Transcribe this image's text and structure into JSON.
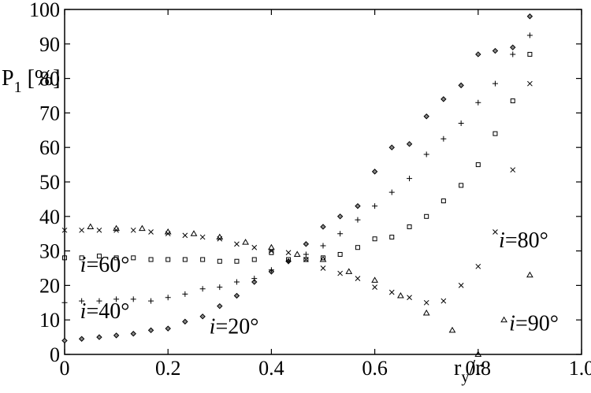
{
  "chart_data": {
    "type": "scatter",
    "xlim": [
      0,
      1.0
    ],
    "ylim": [
      0,
      100
    ],
    "x_ticks": [
      "0",
      "0.2",
      "0.4",
      "0.6",
      "0.8",
      "1.0"
    ],
    "y_ticks": [
      "0",
      "10",
      "20",
      "30",
      "40",
      "50",
      "60",
      "70",
      "80",
      "90",
      "100"
    ],
    "ylabel": {
      "main": "P",
      "sub": "1",
      "unit": " [%]"
    },
    "xlabel": {
      "main": "r",
      "sub": "y",
      "tail": "/r"
    },
    "grid": false,
    "series": [
      {
        "name": "i=20°",
        "marker": "diamond",
        "x": [
          0.0,
          0.033,
          0.067,
          0.1,
          0.133,
          0.167,
          0.2,
          0.233,
          0.267,
          0.3,
          0.333,
          0.367,
          0.4,
          0.433,
          0.467,
          0.5,
          0.533,
          0.567,
          0.6,
          0.633,
          0.667,
          0.7,
          0.733,
          0.767,
          0.8,
          0.833,
          0.867,
          0.9
        ],
        "y": [
          4,
          4.5,
          5,
          5.5,
          6,
          7,
          7.5,
          9.5,
          11,
          14,
          17,
          21,
          24,
          27,
          32,
          37,
          40,
          43,
          53,
          60,
          61,
          69,
          74,
          78,
          87,
          88,
          89,
          98
        ]
      },
      {
        "name": "i=40°",
        "marker": "plus",
        "x": [
          0.0,
          0.033,
          0.067,
          0.1,
          0.133,
          0.167,
          0.2,
          0.233,
          0.267,
          0.3,
          0.333,
          0.367,
          0.4,
          0.433,
          0.467,
          0.5,
          0.533,
          0.567,
          0.6,
          0.633,
          0.667,
          0.7,
          0.733,
          0.767,
          0.8,
          0.833,
          0.867,
          0.9
        ],
        "y": [
          15,
          15.5,
          15.5,
          16,
          16,
          15.5,
          16.5,
          17.5,
          19,
          19.5,
          21,
          22,
          24.5,
          27,
          29,
          31.5,
          35,
          39,
          43,
          47,
          51,
          58,
          62.5,
          67,
          73,
          78.5,
          87,
          92.5
        ]
      },
      {
        "name": "i=60°",
        "marker": "square",
        "x": [
          0.0,
          0.033,
          0.067,
          0.1,
          0.133,
          0.167,
          0.2,
          0.233,
          0.267,
          0.3,
          0.333,
          0.367,
          0.4,
          0.433,
          0.467,
          0.5,
          0.533,
          0.567,
          0.6,
          0.633,
          0.667,
          0.7,
          0.733,
          0.767,
          0.8,
          0.833,
          0.867,
          0.9
        ],
        "y": [
          28,
          28,
          28.5,
          28,
          28,
          27.5,
          27.5,
          27.5,
          27.5,
          27,
          27,
          27.5,
          29.5,
          27.5,
          27.5,
          28,
          29,
          31,
          33.5,
          34,
          37,
          40,
          44.5,
          49,
          55,
          64,
          73.5,
          87
        ]
      },
      {
        "name": "i=80°",
        "marker": "x",
        "x": [
          0.0,
          0.033,
          0.067,
          0.1,
          0.133,
          0.167,
          0.2,
          0.233,
          0.267,
          0.3,
          0.333,
          0.367,
          0.4,
          0.433,
          0.467,
          0.5,
          0.533,
          0.567,
          0.6,
          0.633,
          0.667,
          0.7,
          0.733,
          0.767,
          0.8,
          0.833,
          0.867,
          0.9
        ],
        "y": [
          36,
          36,
          36,
          36,
          36,
          35.5,
          35,
          34.5,
          34,
          33.5,
          32,
          31,
          30,
          29.5,
          27.5,
          25,
          23.5,
          22,
          19.5,
          18,
          16.5,
          15,
          15.5,
          20,
          25.5,
          35.5,
          53.5,
          78.5
        ]
      },
      {
        "name": "i=90°",
        "marker": "triangle",
        "x": [
          0.05,
          0.1,
          0.15,
          0.2,
          0.25,
          0.3,
          0.35,
          0.4,
          0.45,
          0.5,
          0.55,
          0.6,
          0.65,
          0.7,
          0.75,
          0.8,
          0.85,
          0.9
        ],
        "y": [
          37,
          36.5,
          36.5,
          35.5,
          35,
          34,
          32.5,
          31,
          29,
          27.5,
          24,
          21.5,
          17,
          12,
          7,
          0,
          10,
          23
        ]
      }
    ],
    "annotations": [
      {
        "var": "i",
        "text": "=60°",
        "x": 0.03,
        "y": 24
      },
      {
        "var": "i",
        "text": "=40°",
        "x": 0.03,
        "y": 10.5
      },
      {
        "var": "i",
        "text": "=20°",
        "x": 0.28,
        "y": 6
      },
      {
        "var": "i",
        "text": "=80°",
        "x": 0.84,
        "y": 31
      },
      {
        "var": "i",
        "text": "=90°",
        "x": 0.86,
        "y": 7
      }
    ]
  }
}
